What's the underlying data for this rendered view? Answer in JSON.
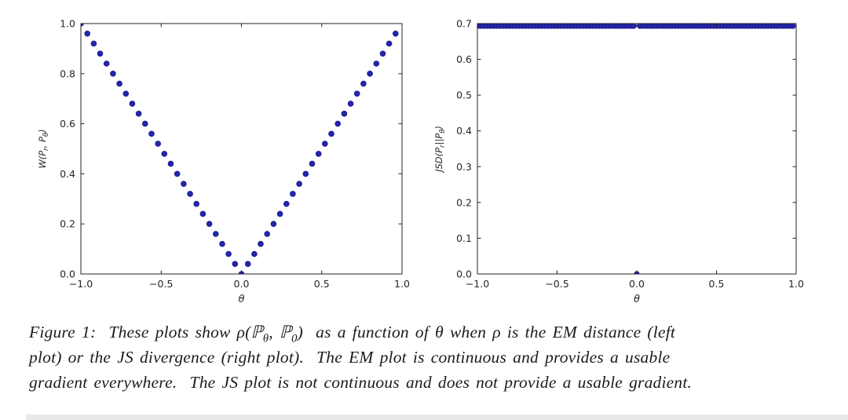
{
  "caption": {
    "label": "Figure 1:",
    "lines": [
      [
        {
          "text": "Figure 1:  These plots show ρ("
        },
        {
          "text": "ℙ"
        },
        {
          "text": "θ",
          "sub": true
        },
        {
          "text": ", ℙ"
        },
        {
          "text": "0",
          "sub": true
        },
        {
          "text": ")  as a function of θ when ρ is the EM distance (left"
        }
      ],
      [
        {
          "text": "plot) or the JS divergence (right plot).  The EM plot is continuous and provides a usable"
        }
      ],
      [
        {
          "text": "gradient everywhere.  The JS plot is not continuous and does not provide a usable gradient."
        }
      ]
    ]
  },
  "colors": {
    "marker_fill": "#2525ad",
    "marker_edge": "#15158a",
    "axis": "#262626",
    "tick_label": "#262626"
  },
  "chart_data": [
    {
      "type": "scatter",
      "title": "",
      "xlabel": "θ",
      "ylabel": "W(P_r, P_θ)",
      "ylabel_rich": [
        {
          "text": "W(P"
        },
        {
          "text": "r",
          "sub": true
        },
        {
          "text": ", P"
        },
        {
          "text": "θ",
          "sub": true
        },
        {
          "text": ")"
        }
      ],
      "xlim": [
        -1.0,
        1.0
      ],
      "ylim": [
        0.0,
        1.0
      ],
      "xticks": [
        -1.0,
        -0.5,
        0.0,
        0.5,
        1.0
      ],
      "xtick_labels": [
        "−1.0",
        "−0.5",
        "0.0",
        "0.5",
        "1.0"
      ],
      "yticks": [
        0.0,
        0.2,
        0.4,
        0.6,
        0.8,
        1.0
      ],
      "ytick_labels": [
        "0.0",
        "0.2",
        "0.4",
        "0.6",
        "0.8",
        "1.0"
      ],
      "grid": false,
      "legend": null,
      "series": [
        {
          "name": "EM distance W(Pr, Pθ)",
          "marker": "circle",
          "color": "#2525ad",
          "edge_color": "#15158a",
          "x": [
            -1.0,
            -0.96,
            -0.92,
            -0.88,
            -0.84,
            -0.8,
            -0.76,
            -0.72,
            -0.68,
            -0.64,
            -0.6,
            -0.56,
            -0.52,
            -0.48,
            -0.44,
            -0.4,
            -0.36,
            -0.32,
            -0.28,
            -0.24,
            -0.2,
            -0.16,
            -0.12,
            -0.08,
            -0.04,
            0.0,
            0.04,
            0.08,
            0.12,
            0.16,
            0.2,
            0.24,
            0.28,
            0.32,
            0.36,
            0.4,
            0.44,
            0.48,
            0.52,
            0.56,
            0.6,
            0.64,
            0.68,
            0.72,
            0.76,
            0.8,
            0.84,
            0.88,
            0.92,
            0.96
          ],
          "y": [
            1.0,
            0.96,
            0.92,
            0.88,
            0.84,
            0.8,
            0.76,
            0.72,
            0.68,
            0.64,
            0.6,
            0.56,
            0.52,
            0.48,
            0.44,
            0.4,
            0.36,
            0.32,
            0.28,
            0.24,
            0.2,
            0.16,
            0.12,
            0.08,
            0.04,
            0.0,
            0.04,
            0.08,
            0.12,
            0.16,
            0.2,
            0.24,
            0.28,
            0.32,
            0.36,
            0.4,
            0.44,
            0.48,
            0.52,
            0.56,
            0.6,
            0.64,
            0.68,
            0.72,
            0.76,
            0.8,
            0.84,
            0.88,
            0.92,
            0.96
          ]
        }
      ]
    },
    {
      "type": "scatter",
      "title": "",
      "xlabel": "θ",
      "ylabel": "JSD(P_r||P_θ)",
      "ylabel_rich": [
        {
          "text": "JSD(P"
        },
        {
          "text": "r",
          "sub": true
        },
        {
          "text": "||P"
        },
        {
          "text": "θ",
          "sub": true
        },
        {
          "text": ")"
        }
      ],
      "xlim": [
        -1.0,
        1.0
      ],
      "ylim": [
        0.0,
        0.7
      ],
      "xticks": [
        -1.0,
        -0.5,
        0.0,
        0.5,
        1.0
      ],
      "xtick_labels": [
        "−1.0",
        "−0.5",
        "0.0",
        "0.5",
        "1.0"
      ],
      "yticks": [
        0.0,
        0.1,
        0.2,
        0.3,
        0.4,
        0.5,
        0.6,
        0.7
      ],
      "ytick_labels": [
        "0.0",
        "0.1",
        "0.2",
        "0.3",
        "0.4",
        "0.5",
        "0.6",
        "0.7"
      ],
      "grid": false,
      "legend": null,
      "series": [
        {
          "name": "JS divergence JSD(Pr||Pθ)",
          "marker": "circle",
          "color": "#2525ad",
          "edge_color": "#15158a",
          "x": [
            -1.0,
            -0.98,
            -0.96,
            -0.94,
            -0.92,
            -0.9,
            -0.88,
            -0.86,
            -0.84,
            -0.82,
            -0.8,
            -0.78,
            -0.76,
            -0.74,
            -0.72,
            -0.7,
            -0.68,
            -0.66,
            -0.64,
            -0.62,
            -0.6,
            -0.58,
            -0.56,
            -0.54,
            -0.52,
            -0.5,
            -0.48,
            -0.46,
            -0.44,
            -0.42,
            -0.4,
            -0.38,
            -0.36,
            -0.34,
            -0.32,
            -0.3,
            -0.28,
            -0.26,
            -0.24,
            -0.22,
            -0.2,
            -0.18,
            -0.16,
            -0.14,
            -0.12,
            -0.1,
            -0.08,
            -0.06,
            -0.04,
            -0.02,
            0.0,
            0.02,
            0.04,
            0.06,
            0.08,
            0.1,
            0.12,
            0.14,
            0.16,
            0.18,
            0.2,
            0.22,
            0.24,
            0.26,
            0.28,
            0.3,
            0.32,
            0.34,
            0.36,
            0.38,
            0.4,
            0.42,
            0.44,
            0.46,
            0.48,
            0.5,
            0.52,
            0.54,
            0.56,
            0.58,
            0.6,
            0.62,
            0.64,
            0.66,
            0.68,
            0.7,
            0.72,
            0.74,
            0.76,
            0.78,
            0.8,
            0.82,
            0.84,
            0.86,
            0.88,
            0.9,
            0.92,
            0.94,
            0.96,
            0.98
          ],
          "y": [
            0.693,
            0.693,
            0.693,
            0.693,
            0.693,
            0.693,
            0.693,
            0.693,
            0.693,
            0.693,
            0.693,
            0.693,
            0.693,
            0.693,
            0.693,
            0.693,
            0.693,
            0.693,
            0.693,
            0.693,
            0.693,
            0.693,
            0.693,
            0.693,
            0.693,
            0.693,
            0.693,
            0.693,
            0.693,
            0.693,
            0.693,
            0.693,
            0.693,
            0.693,
            0.693,
            0.693,
            0.693,
            0.693,
            0.693,
            0.693,
            0.693,
            0.693,
            0.693,
            0.693,
            0.693,
            0.693,
            0.693,
            0.693,
            0.693,
            0.693,
            0.0,
            0.693,
            0.693,
            0.693,
            0.693,
            0.693,
            0.693,
            0.693,
            0.693,
            0.693,
            0.693,
            0.693,
            0.693,
            0.693,
            0.693,
            0.693,
            0.693,
            0.693,
            0.693,
            0.693,
            0.693,
            0.693,
            0.693,
            0.693,
            0.693,
            0.693,
            0.693,
            0.693,
            0.693,
            0.693,
            0.693,
            0.693,
            0.693,
            0.693,
            0.693,
            0.693,
            0.693,
            0.693,
            0.693,
            0.693,
            0.693,
            0.693,
            0.693,
            0.693,
            0.693,
            0.693,
            0.693,
            0.693,
            0.693,
            0.693
          ]
        }
      ]
    }
  ]
}
